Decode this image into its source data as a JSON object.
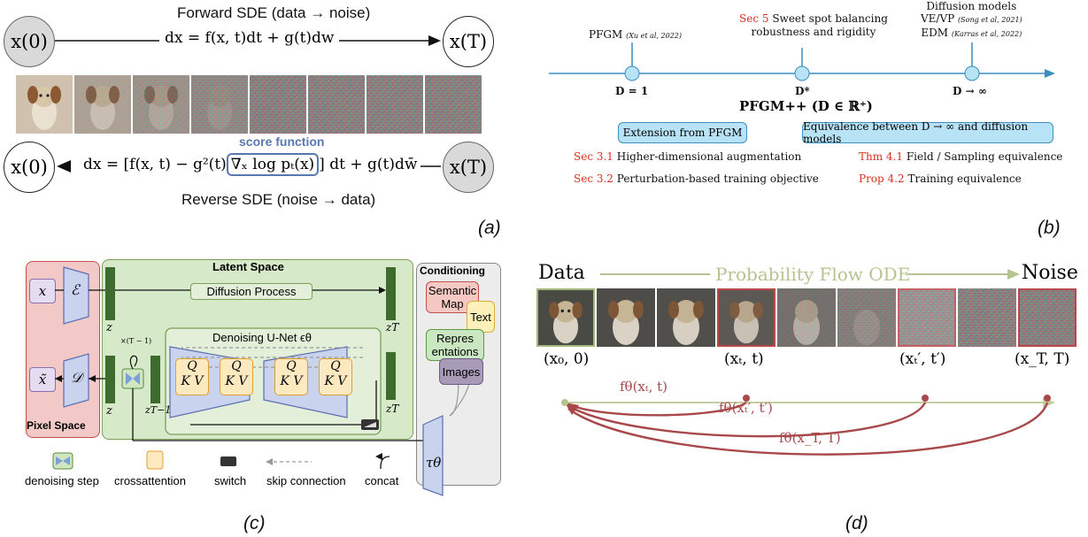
{
  "panel_a": {
    "forward_title": "Forward SDE (data → noise)",
    "reverse_title": "Reverse SDE (noise → data)",
    "x0_label": "x(0)",
    "xT_label": "x(T)",
    "forward_eq": "dx = f(x, t)dt + g(t)dw",
    "reverse_eq_left": "dx = [f(x, t) − g²(t)",
    "reverse_eq_score": "∇ₓ log pₜ(x)",
    "reverse_eq_right": "] dt + g(t)dw̄",
    "score_label": "score function",
    "panel_tag": "(a)"
  },
  "panel_b": {
    "points": [
      {
        "label": "D = 1",
        "annotation": "PFGM",
        "cite": "(Xu et al, 2022)"
      },
      {
        "label": "D*",
        "annotation_ref": "Sec 5",
        "annotation": "Sweet spot balancing",
        "annotation2": "robustness and rigidity"
      },
      {
        "label": "D → ∞",
        "annotation": "Diffusion models",
        "annotation2": "VE/VP",
        "cite2": "(Song et al, 2021)",
        "annotation3": "EDM",
        "cite3": "(Karras et al, 2022)"
      }
    ],
    "title": "PFGM++ (D ∈ ℝ⁺)",
    "left_pill": "Extension from PFGM",
    "right_pill": "Equivalence between D → ∞ and diffusion models",
    "left_items": [
      {
        "ref": "Sec 3.1",
        "text": "Higher-dimensional augmentation"
      },
      {
        "ref": "Sec 3.2",
        "text": "Perturbation-based training objective"
      }
    ],
    "right_items": [
      {
        "ref": "Thm 4.1",
        "text": "Field / Sampling equivalence"
      },
      {
        "ref": "Prop 4.2",
        "text": "Training equivalence"
      }
    ],
    "panel_tag": "(b)"
  },
  "panel_c": {
    "latent_space": "Latent Space",
    "pixel_space": "Pixel Space",
    "conditioning": "Conditioning",
    "diffusion_process": "Diffusion Process",
    "unet_title": "Denoising U-Net ϵθ",
    "x": "x",
    "x_tilde": "x̃",
    "encoder": "ℰ",
    "decoder": "𝒟",
    "z": "z",
    "zT": "zT",
    "zT1": "zT−1",
    "repeat": "×(T − 1)",
    "tau": "τθ",
    "q": "Q",
    "kv": "K V",
    "cond_items": [
      "Semantic Map",
      "Text",
      "Repres entations",
      "Images"
    ],
    "legend": [
      "denoising step",
      "crossattention",
      "switch",
      "skip connection",
      "concat"
    ],
    "panel_tag": "(c)"
  },
  "panel_d": {
    "data_label": "Data",
    "noise_label": "Noise",
    "ode_label": "Probability Flow ODE",
    "points": [
      "(x₀, 0)",
      "(xₜ, t)",
      "(xₜ′, t′)",
      "(x_T, T)"
    ],
    "arrows": [
      "fθ(xₜ, t)",
      "fθ(xₜ′, t′)",
      "fθ(x_T, T)"
    ],
    "panel_tag": "(d)"
  },
  "colors": {
    "red_ref": "#d9301e",
    "pill_fill": "#b8e2f5",
    "latent_green": "#d6e9c8",
    "pixel_red": "#f2c9c6",
    "unet_blue": "#c9d3ee",
    "qkv_fill": "#fde9c0",
    "ode_green": "#b5c48f",
    "consistency_red": "#a8484a"
  }
}
